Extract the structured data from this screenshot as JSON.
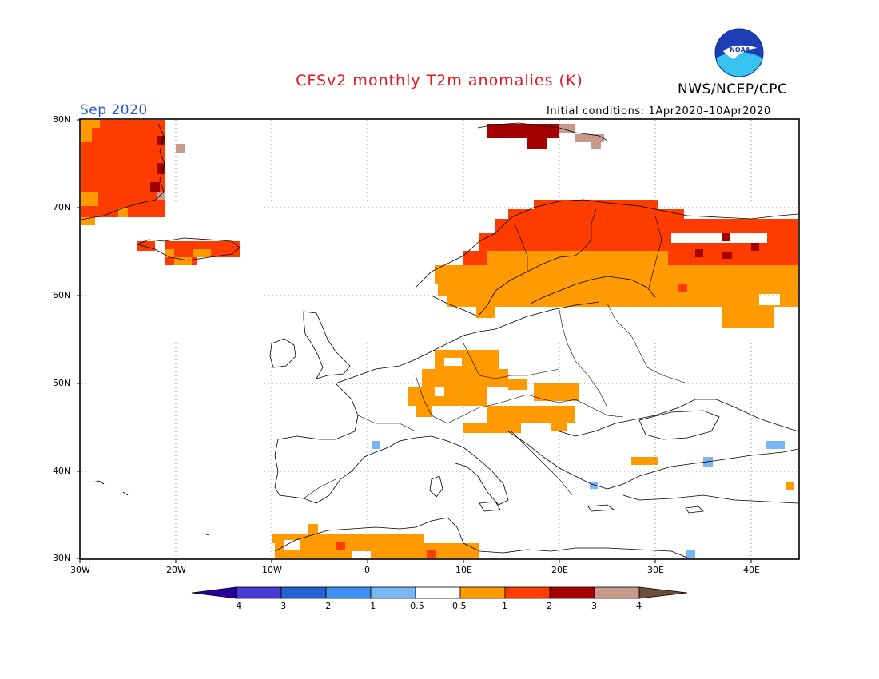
{
  "header": {
    "title": "CFSv2 monthly T2m anomalies (K)",
    "agency": "NWS/NCEP/CPC",
    "period": "Sep 2020",
    "initial_conditions": "Initial conditions: 1Apr2020–10Apr2020",
    "logo_text": "NOAA"
  },
  "map": {
    "lon_range": [
      -30,
      45
    ],
    "lat_range": [
      30,
      80
    ],
    "lat_ticks": [
      "80N",
      "70N",
      "60N",
      "50N",
      "40N",
      "30N"
    ],
    "lon_ticks": [
      "30W",
      "20W",
      "10W",
      "0",
      "10E",
      "20E",
      "30E",
      "40E"
    ],
    "grid": "dotted"
  },
  "colorbar": {
    "labels": [
      "−4",
      "−3",
      "−2",
      "−1",
      "−0.5",
      "0.5",
      "1",
      "2",
      "3",
      "4"
    ],
    "colors": [
      "#26009b",
      "#4a3ad6",
      "#2264d4",
      "#3f8ff0",
      "#7ab6f4",
      "#ffffff",
      "#ff9b00",
      "#ff3c00",
      "#a50000",
      "#c7998a",
      "#6f4b3a"
    ]
  }
}
